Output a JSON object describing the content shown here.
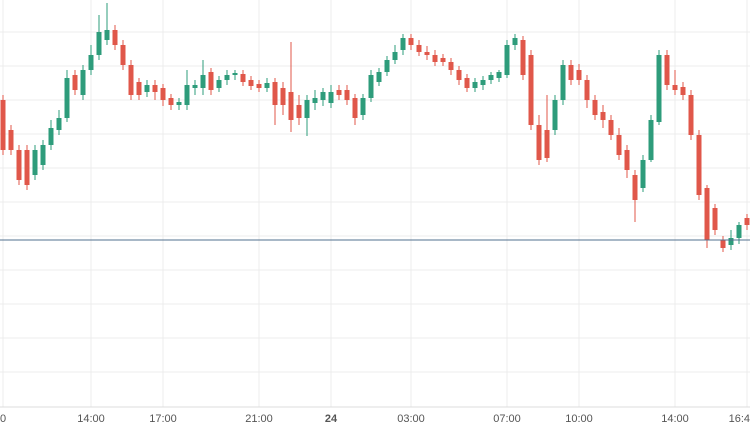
{
  "chart_data": {
    "type": "candlestick",
    "categories": [
      "0",
      null,
      null,
      null,
      null,
      null,
      null,
      null,
      null,
      null,
      null,
      "14:00",
      null,
      null,
      null,
      null,
      null,
      null,
      null,
      null,
      "17:00",
      null,
      null,
      null,
      null,
      null,
      null,
      null,
      null,
      null,
      null,
      null,
      "21:00",
      null,
      null,
      null,
      null,
      null,
      null,
      null,
      null,
      "24",
      null,
      null,
      null,
      null,
      null,
      null,
      null,
      null,
      null,
      "03:00",
      null,
      null,
      null,
      null,
      null,
      null,
      null,
      null,
      null,
      null,
      null,
      "07:00",
      null,
      null,
      null,
      null,
      null,
      null,
      null,
      null,
      "10:00",
      null,
      null,
      null,
      null,
      null,
      null,
      null,
      null,
      null,
      null,
      null,
      "14:00",
      null,
      null,
      null,
      null,
      null,
      null,
      null,
      null,
      "16:4"
    ],
    "open": [
      310,
      280,
      260,
      260,
      235,
      245,
      265,
      280,
      292,
      335,
      315,
      340,
      355,
      370,
      380,
      365,
      345,
      328,
      318,
      325,
      322,
      312,
      305,
      305,
      322,
      322,
      338,
      322,
      330,
      335,
      336,
      330,
      326,
      322,
      328,
      322,
      318,
      305,
      292,
      307,
      310,
      307,
      320,
      320,
      312,
      295,
      312,
      328,
      338,
      350,
      360,
      372,
      365,
      358,
      355,
      352,
      348,
      340,
      332,
      322,
      325,
      330,
      332,
      335,
      365,
      370,
      355,
      285,
      280,
      280,
      310,
      345,
      340,
      330,
      310,
      298,
      290,
      275,
      260,
      235,
      222,
      250,
      288,
      355,
      325,
      323,
      315,
      275,
      222,
      202,
      170,
      165,
      172,
      192
    ],
    "high": [
      315,
      285,
      265,
      265,
      265,
      270,
      290,
      300,
      340,
      340,
      345,
      365,
      395,
      407,
      385,
      370,
      350,
      332,
      330,
      330,
      326,
      316,
      312,
      340,
      330,
      350,
      342,
      334,
      340,
      340,
      340,
      334,
      330,
      332,
      332,
      328,
      368,
      315,
      315,
      320,
      322,
      325,
      325,
      325,
      316,
      316,
      340,
      342,
      354,
      365,
      376,
      376,
      370,
      364,
      360,
      356,
      352,
      344,
      336,
      332,
      334,
      338,
      340,
      370,
      376,
      374,
      360,
      295,
      315,
      315,
      350,
      350,
      346,
      335,
      315,
      305,
      295,
      282,
      265,
      240,
      255,
      295,
      360,
      360,
      340,
      328,
      320,
      280,
      225,
      206,
      174,
      180,
      188,
      196
    ],
    "low": [
      255,
      255,
      225,
      220,
      230,
      240,
      260,
      275,
      288,
      315,
      310,
      335,
      350,
      365,
      360,
      340,
      310,
      310,
      313,
      310,
      304,
      300,
      300,
      300,
      315,
      315,
      315,
      318,
      325,
      330,
      324,
      320,
      318,
      318,
      285,
      295,
      278,
      285,
      274,
      300,
      304,
      302,
      310,
      305,
      285,
      290,
      308,
      324,
      334,
      346,
      355,
      360,
      354,
      350,
      344,
      344,
      335,
      325,
      318,
      318,
      320,
      326,
      328,
      332,
      360,
      330,
      280,
      245,
      248,
      275,
      305,
      325,
      325,
      302,
      290,
      282,
      270,
      250,
      232,
      188,
      218,
      248,
      285,
      320,
      315,
      310,
      270,
      210,
      162,
      175,
      158,
      160,
      166,
      180
    ],
    "close": [
      260,
      260,
      230,
      225,
      260,
      265,
      282,
      292,
      332,
      320,
      340,
      355,
      378,
      380,
      365,
      345,
      315,
      315,
      325,
      318,
      310,
      305,
      308,
      325,
      325,
      335,
      320,
      330,
      335,
      337,
      328,
      324,
      322,
      327,
      305,
      305,
      290,
      292,
      310,
      312,
      318,
      318,
      315,
      310,
      292,
      312,
      335,
      338,
      350,
      358,
      372,
      365,
      358,
      355,
      348,
      348,
      340,
      330,
      322,
      328,
      330,
      335,
      338,
      365,
      372,
      335,
      285,
      250,
      252,
      310,
      345,
      330,
      330,
      310,
      295,
      290,
      275,
      255,
      240,
      210,
      250,
      290,
      355,
      325,
      320,
      315,
      275,
      215,
      170,
      180,
      162,
      172,
      185,
      185
    ],
    "up_color": "#2e9c7b",
    "down_color": "#e0574a",
    "ylim": [
      0,
      410
    ],
    "price_line": 170,
    "price_line_color": "#52708f",
    "grid": true
  }
}
